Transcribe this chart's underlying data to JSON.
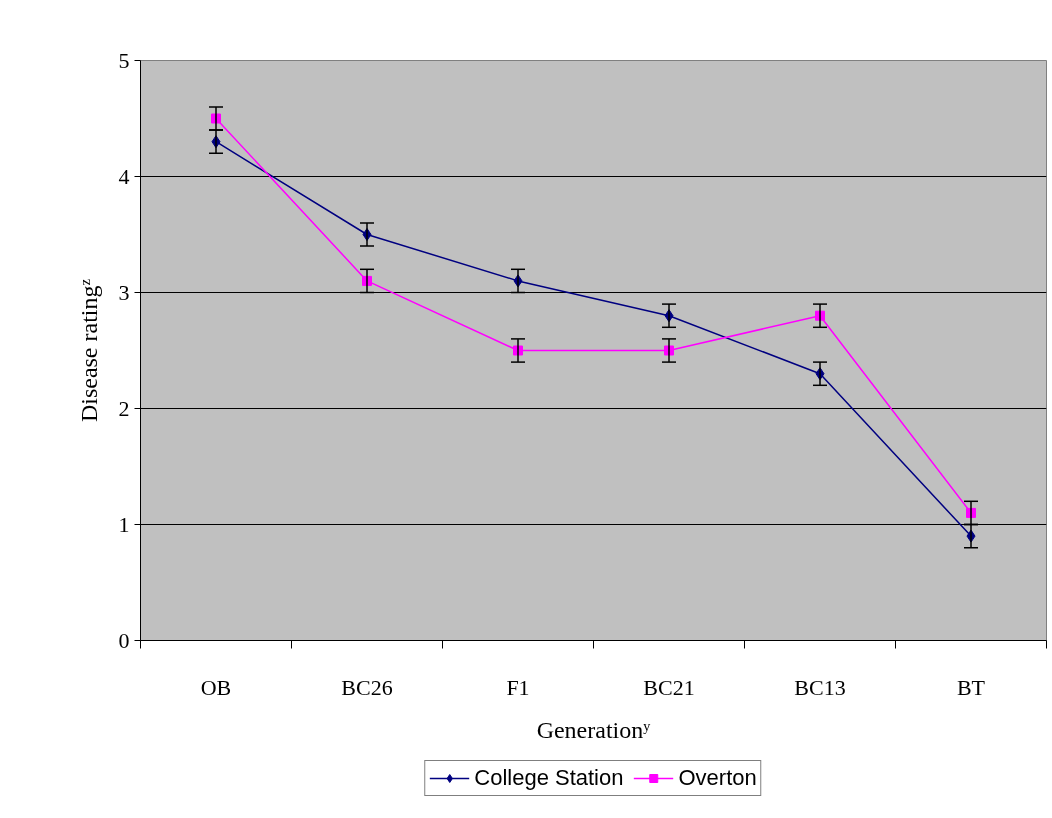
{
  "chart_data": {
    "type": "line",
    "xlabel": "Generationʸ",
    "ylabel": "Disease ratingᶻ",
    "categories": [
      "OB",
      "BC26",
      "F1",
      "BC21",
      "BC13",
      "BT"
    ],
    "series": [
      {
        "name": "College Station",
        "color": "#000080",
        "marker": "diamond",
        "values": [
          4.3,
          3.5,
          3.1,
          2.8,
          2.3,
          0.9
        ],
        "errors": [
          0.1,
          0.1,
          0.1,
          0.1,
          0.1,
          0.1
        ]
      },
      {
        "name": "Overton",
        "color": "#ff00ff",
        "marker": "square",
        "values": [
          4.5,
          3.1,
          2.5,
          2.5,
          2.8,
          1.1
        ],
        "errors": [
          0.1,
          0.1,
          0.1,
          0.1,
          0.1,
          0.1
        ]
      }
    ],
    "ylim": [
      0,
      5
    ],
    "yticks": [
      0,
      1,
      2,
      3,
      4,
      5
    ],
    "grid": "y",
    "legend": "bottom",
    "line_style": "solid"
  }
}
